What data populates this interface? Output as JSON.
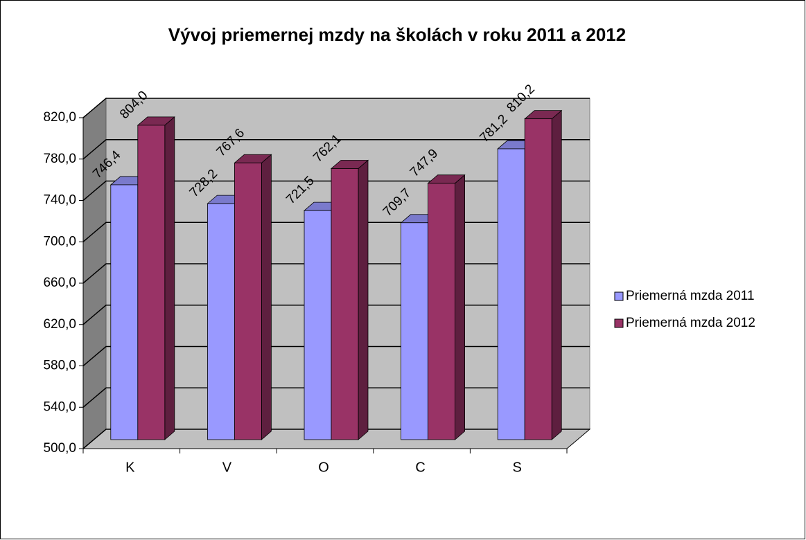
{
  "chart_data": {
    "type": "bar",
    "title": "Vývoj priemernej mzdy na školách v roku 2011 a 2012",
    "categories": [
      "K",
      "V",
      "O",
      "C",
      "S"
    ],
    "series": [
      {
        "name": "Priemerná mzda 2011",
        "color": "#9999ff",
        "side_color": "#6b6bb3",
        "top_color": "#7a7acc",
        "values": [
          746.4,
          728.2,
          721.5,
          709.7,
          781.2
        ],
        "value_labels": [
          "746,4",
          "728,2",
          "721,5",
          "709,7",
          "781,2"
        ]
      },
      {
        "name": "Priemerná mzda 2012",
        "color": "#993366",
        "side_color": "#5e1f3f",
        "top_color": "#7a2952",
        "values": [
          804.0,
          767.6,
          762.1,
          747.9,
          810.2
        ],
        "value_labels": [
          "804,0",
          "767,6",
          "762,1",
          "747,9",
          "810,2"
        ]
      }
    ],
    "ylim": [
      500,
      820
    ],
    "yticks": [
      {
        "value": 500,
        "label": "500,0"
      },
      {
        "value": 540,
        "label": "540,0"
      },
      {
        "value": 580,
        "label": "580,0"
      },
      {
        "value": 620,
        "label": "620,0"
      },
      {
        "value": 660,
        "label": "660,0"
      },
      {
        "value": 700,
        "label": "700,0"
      },
      {
        "value": 740,
        "label": "740,0"
      },
      {
        "value": 780,
        "label": "780,0"
      },
      {
        "value": 820,
        "label": "820,0"
      }
    ],
    "grid": true,
    "legend": "right"
  }
}
